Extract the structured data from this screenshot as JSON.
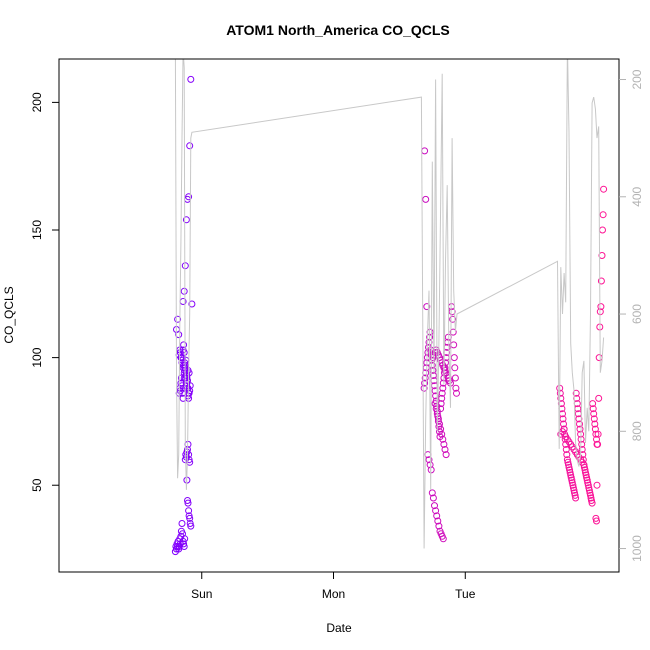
{
  "chart_data": {
    "type": "scatter",
    "title": "ATOM1 North_America CO_QCLS",
    "xlabel": "Date",
    "ylabel": "CO_QCLS",
    "x_axis": {
      "unit": "hours since Saturday 00:00",
      "xlim": [
        10,
        112
      ],
      "ticks": [
        {
          "value": 36,
          "label": "Sun"
        },
        {
          "value": 60,
          "label": "Mon"
        },
        {
          "value": 84,
          "label": "Tue"
        }
      ]
    },
    "left_axis": {
      "ylim": [
        16,
        217
      ],
      "ticks": [
        50,
        100,
        150,
        200
      ]
    },
    "right_axis": {
      "ylim": [
        1040,
        165
      ],
      "ticks": [
        200,
        400,
        600,
        800,
        1000
      ],
      "color": "#b3b3b3",
      "reversed": true
    },
    "grid": false,
    "colors": {
      "start": "#7f00ff",
      "end": "#ff1493",
      "line": "#c8c8c8",
      "axis": "#000000",
      "right_axis": "#b3b3b3"
    },
    "series": [
      {
        "kind": "points",
        "axis": "left",
        "color_by_time": true,
        "x": [
          31.2,
          31.3,
          31.4,
          31.5,
          31.6,
          31.7,
          31.8,
          31.9,
          32.0,
          32.1,
          32.2,
          32.3,
          32.4,
          32.5,
          32.6,
          32.7,
          32.8,
          32.9,
          31.9,
          32.0,
          32.1,
          32.2,
          32.3,
          32.4,
          32.5,
          32.6,
          32.7,
          32.8,
          32.9,
          33.0,
          33.1,
          33.2,
          33.3,
          33.4,
          33.5,
          33.6,
          32.5,
          32.6,
          32.7,
          32.8,
          32.9,
          33.0,
          33.1,
          33.2,
          33.3,
          33.4,
          33.5,
          33.6,
          33.7,
          33.8,
          33.9,
          33.0,
          33.1,
          33.2,
          33.3,
          33.4,
          33.5,
          33.6,
          33.7,
          33.8,
          31.4,
          31.6,
          31.8,
          32.0,
          32.2,
          32.4,
          32.6,
          32.8,
          33.0,
          33.2,
          33.4,
          33.6,
          33.3,
          33.4,
          33.5,
          33.6,
          33.7,
          33.8,
          33.9,
          34.0,
          32.6,
          32.8,
          33.0,
          33.2,
          33.4,
          33.6,
          33.8,
          34.0,
          34.2,
          31.9,
          32.1,
          32.3,
          32.5,
          32.7,
          32.9,
          33.1,
          33.3,
          33.5,
          33.7,
          76.5,
          76.6,
          76.7,
          76.8,
          76.9,
          77.0,
          77.1,
          77.2,
          77.3,
          77.4,
          77.5,
          77.6,
          77.7,
          77.8,
          77.9,
          78.0,
          78.1,
          78.2,
          78.3,
          78.4,
          78.5,
          78.6,
          78.7,
          78.8,
          78.9,
          79.0,
          79.1,
          79.2,
          79.3,
          79.4,
          79.5,
          79.6,
          79.7,
          79.8,
          79.9,
          80.0,
          80.1,
          80.2,
          80.3,
          80.4,
          80.5,
          80.6,
          80.7,
          80.8,
          80.9,
          77.2,
          77.4,
          77.6,
          77.8,
          78.0,
          78.2,
          78.4,
          78.6,
          78.8,
          79.0,
          79.2,
          79.4,
          79.6,
          79.8,
          80.0,
          78.1,
          78.3,
          78.5,
          78.7,
          78.9,
          79.1,
          79.3,
          79.5,
          79.7,
          79.9,
          80.1,
          80.3,
          80.5,
          80.7,
          80.9,
          81.1,
          81.3,
          81.5,
          81.6,
          81.7,
          81.8,
          81.9,
          82.0,
          82.1,
          82.2,
          82.3,
          82.4,
          78.5,
          78.7,
          78.9,
          79.1,
          79.3,
          79.5,
          79.7,
          79.9,
          80.1,
          80.3,
          80.5,
          76.6,
          76.8,
          77.0,
          101.2,
          101.3,
          101.4,
          101.5,
          101.6,
          101.7,
          101.8,
          101.9,
          102.0,
          102.1,
          102.2,
          102.3,
          102.4,
          102.5,
          102.6,
          102.7,
          102.8,
          102.9,
          103.0,
          103.1,
          103.2,
          103.3,
          103.4,
          103.5,
          103.6,
          103.7,
          103.8,
          103.9,
          104.0,
          104.1,
          104.2,
          104.3,
          104.4,
          104.5,
          104.6,
          104.7,
          104.8,
          104.9,
          105.0,
          105.1,
          105.2,
          105.3,
          105.4,
          105.5,
          105.6,
          101.4,
          101.7,
          102.0,
          102.3,
          102.6,
          102.9,
          103.2,
          103.5,
          103.8,
          104.1,
          104.4,
          104.7,
          105.0,
          105.3,
          105.6,
          105.7,
          105.8,
          105.9,
          106.0,
          106.1,
          106.2,
          106.3,
          106.4,
          106.5,
          106.6,
          106.7,
          106.8,
          106.9,
          107.0,
          107.1,
          107.2,
          107.3,
          107.4,
          107.5,
          107.6,
          107.7,
          107.8,
          107.9,
          108.0,
          107.8,
          107.9,
          108.0,
          108.1,
          108.2,
          108.3,
          108.4,
          108.5,
          108.6,
          108.7,
          108.8,
          108.9,
          109.0,
          109.1,
          109.2
        ],
        "y": [
          24,
          26,
          25,
          27,
          26,
          28,
          25,
          26,
          29,
          27,
          30,
          32,
          35,
          31,
          28,
          27,
          26,
          29,
          86,
          88,
          87,
          90,
          92,
          89,
          86,
          84,
          88,
          92,
          95,
          97,
          99,
          94,
          93,
          91,
          88,
          86,
          100,
          103,
          105,
          102,
          98,
          96,
          93,
          89,
          90,
          88,
          85,
          84,
          86,
          87,
          89,
          60,
          62,
          61,
          63,
          64,
          66,
          62,
          60,
          59,
          111,
          115,
          109,
          103,
          100,
          98,
          96,
          94,
          92,
          90,
          88,
          86,
          52,
          44,
          43,
          40,
          38,
          37,
          35,
          34,
          122,
          126,
          136,
          154,
          162,
          163,
          183,
          209,
          121,
          101,
          102,
          100,
          99,
          97,
          96,
          93,
          92,
          95,
          94,
          88,
          90,
          92,
          94,
          96,
          98,
          100,
          102,
          104,
          106,
          108,
          110,
          103,
          101,
          99,
          97,
          95,
          93,
          91,
          89,
          87,
          85,
          83,
          81,
          79,
          77,
          75,
          73,
          71,
          69,
          80,
          82,
          84,
          86,
          88,
          90,
          92,
          94,
          96,
          98,
          100,
          102,
          104,
          106,
          108,
          62,
          60,
          58,
          56,
          47,
          45,
          42,
          40,
          38,
          36,
          34,
          32,
          31,
          30,
          29,
          100,
          101,
          102,
          103,
          102,
          101,
          100,
          99,
          98,
          97,
          96,
          95,
          94,
          93,
          92,
          91,
          90,
          120,
          118,
          115,
          110,
          105,
          100,
          96,
          92,
          88,
          86,
          82,
          80,
          78,
          76,
          74,
          72,
          70,
          68,
          66,
          64,
          62,
          181,
          162,
          120,
          88,
          86,
          84,
          82,
          80,
          78,
          76,
          74,
          72,
          70,
          68,
          66,
          64,
          62,
          60,
          59,
          58,
          57,
          56,
          55,
          54,
          53,
          52,
          51,
          50,
          49,
          48,
          47,
          46,
          45,
          86,
          84,
          82,
          80,
          78,
          76,
          74,
          72,
          70,
          68,
          66,
          64,
          62,
          60,
          58,
          70,
          71,
          72,
          69,
          68,
          67,
          66,
          65,
          64,
          63,
          62,
          61,
          60,
          59,
          58,
          57,
          56,
          55,
          54,
          53,
          52,
          51,
          50,
          49,
          48,
          47,
          46,
          45,
          44,
          43,
          82,
          80,
          78,
          76,
          74,
          72,
          70,
          68,
          66,
          37,
          36,
          50,
          66,
          70,
          84,
          100,
          112,
          118,
          120,
          130,
          140,
          150,
          156,
          166
        ]
      },
      {
        "kind": "line",
        "axis": "right",
        "x": [
          31.0,
          31.2,
          31.4,
          31.6,
          31.8,
          32.0,
          32.2,
          32.4,
          32.6,
          32.8,
          33.0,
          33.2,
          33.4,
          33.6,
          33.8,
          34.0,
          34.2,
          76.0,
          76.5,
          76.8,
          77.1,
          77.4,
          77.7,
          78.0,
          78.3,
          78.6,
          78.9,
          79.2,
          79.5,
          79.8,
          80.1,
          80.4,
          80.7,
          81.0,
          81.3,
          81.6,
          81.9,
          82.2,
          82.5,
          100.8,
          101.1,
          101.4,
          101.7,
          102.0,
          102.3,
          102.6,
          102.9,
          103.2,
          103.5,
          103.8,
          104.1,
          104.4,
          104.7,
          105.0,
          105.3,
          105.6,
          105.9,
          106.2,
          106.5,
          106.8,
          107.1,
          107.4,
          107.7,
          108.0,
          108.3,
          108.6,
          108.9,
          109.2
        ],
        "y": [
          150,
          160,
          700,
          880,
          840,
          620,
          480,
          300,
          150,
          180,
          820,
          900,
          840,
          700,
          600,
          300,
          290,
          230,
          1000,
          780,
          640,
          560,
          900,
          340,
          700,
          200,
          800,
          650,
          420,
          190,
          720,
          510,
          380,
          650,
          760,
          300,
          560,
          630,
          600,
          510,
          830,
          520,
          600,
          530,
          580,
          140,
          290,
          650,
          700,
          730,
          820,
          850,
          860,
          840,
          700,
          680,
          820,
          760,
          800,
          600,
          240,
          230,
          250,
          300,
          280,
          700,
          680,
          640
        ]
      }
    ]
  }
}
